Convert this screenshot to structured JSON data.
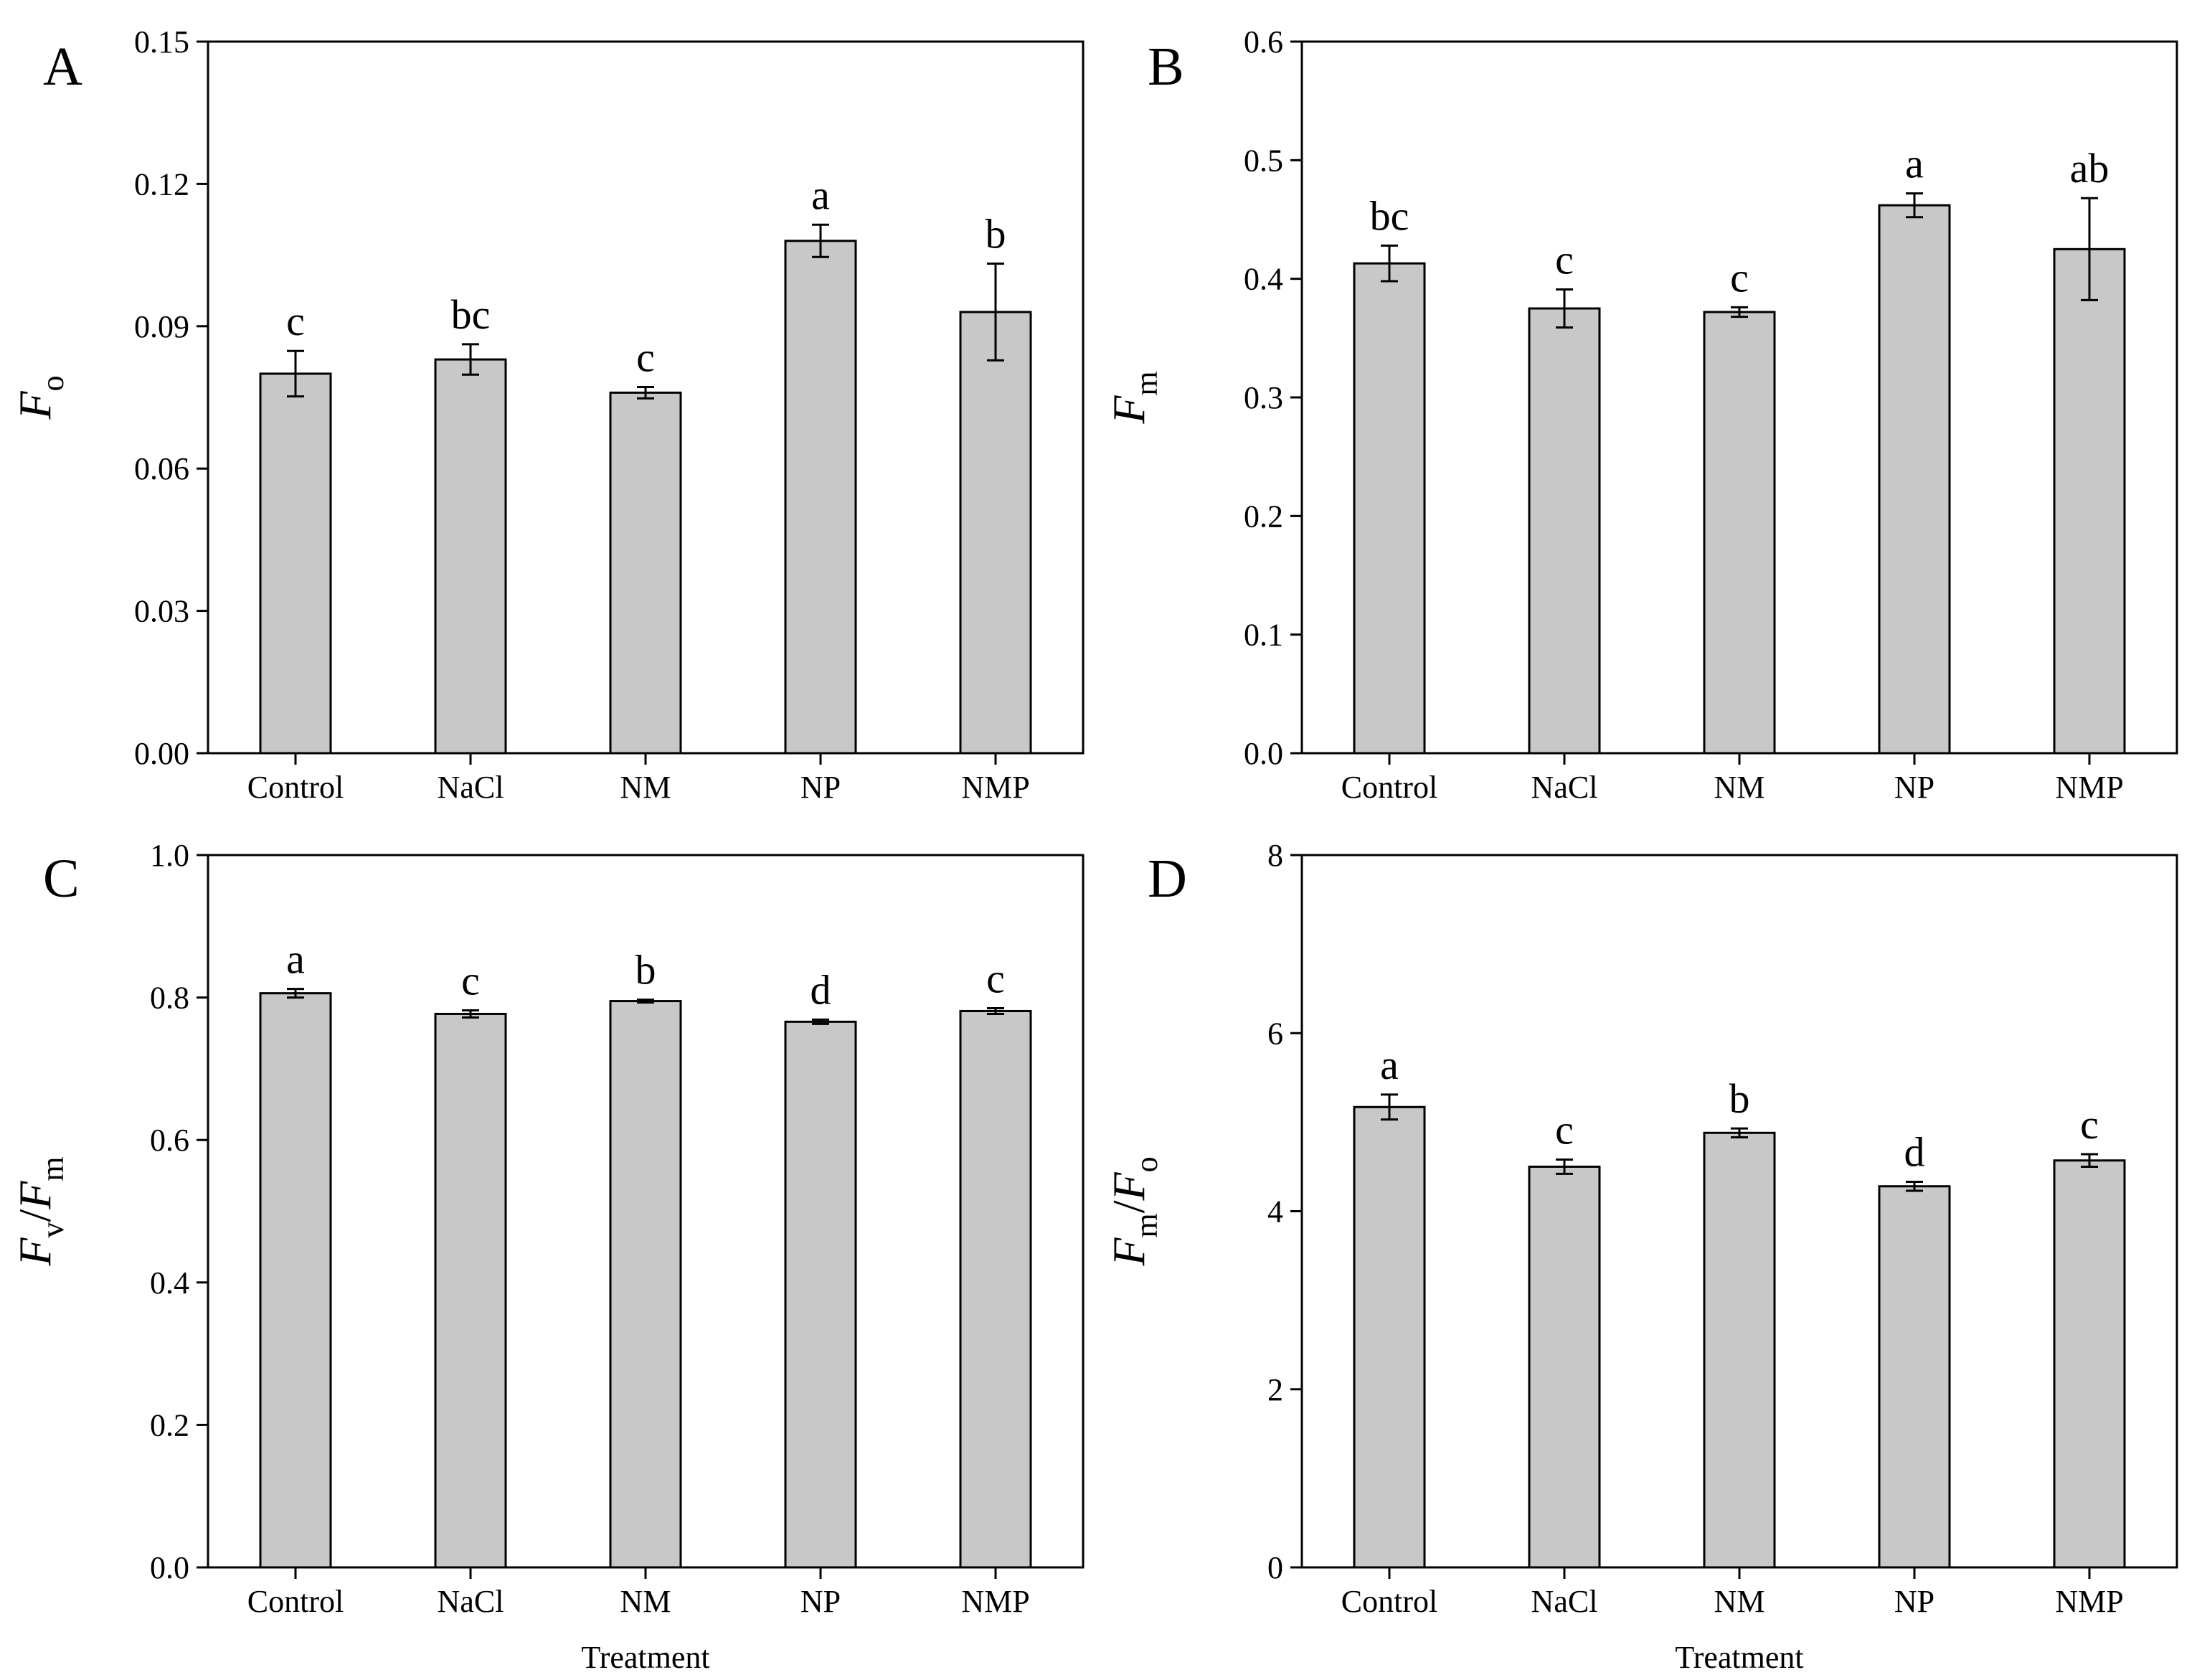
{
  "chart_data": [
    {
      "type": "bar",
      "panel": "A",
      "ylabel": {
        "parts": [
          {
            "t": "F",
            "sub": "o"
          }
        ]
      },
      "xlabel": "",
      "categories": [
        "Control",
        "NaCl",
        "NM",
        "NP",
        "NMP"
      ],
      "values": [
        0.08,
        0.083,
        0.076,
        0.108,
        0.093
      ],
      "errors": [
        0.0048,
        0.0032,
        0.0012,
        0.0034,
        0.0102
      ],
      "letters": [
        "c",
        "bc",
        "c",
        "a",
        "b"
      ],
      "ylim": [
        0,
        0.15
      ],
      "yticks": [
        "0.00",
        "0.03",
        "0.06",
        "0.09",
        "0.12",
        "0.15"
      ],
      "bar_color": "#c8c8c8"
    },
    {
      "type": "bar",
      "panel": "B",
      "ylabel": {
        "parts": [
          {
            "t": "F",
            "sub": "m"
          }
        ]
      },
      "xlabel": "",
      "categories": [
        "Control",
        "NaCl",
        "NM",
        "NP",
        "NMP"
      ],
      "values": [
        0.413,
        0.375,
        0.372,
        0.462,
        0.425
      ],
      "errors": [
        0.015,
        0.016,
        0.004,
        0.01,
        0.043
      ],
      "letters": [
        "bc",
        "c",
        "c",
        "a",
        "ab"
      ],
      "ylim": [
        0,
        0.6
      ],
      "yticks": [
        "0.0",
        "0.1",
        "0.2",
        "0.3",
        "0.4",
        "0.5",
        "0.6"
      ],
      "bar_color": "#c8c8c8"
    },
    {
      "type": "bar",
      "panel": "C",
      "ylabel": {
        "parts": [
          {
            "t": "F",
            "sub": "v"
          },
          {
            "t": "F",
            "sub": "m"
          }
        ]
      },
      "xlabel": "Treatment",
      "categories": [
        "Control",
        "NaCl",
        "NM",
        "NP",
        "NMP"
      ],
      "values": [
        0.806,
        0.777,
        0.795,
        0.766,
        0.781
      ],
      "errors": [
        0.006,
        0.005,
        0.002,
        0.003,
        0.004
      ],
      "letters": [
        "a",
        "c",
        "b",
        "d",
        "c"
      ],
      "ylim": [
        0,
        1.0
      ],
      "yticks": [
        "0.0",
        "0.2",
        "0.4",
        "0.6",
        "0.8",
        "1.0"
      ],
      "bar_color": "#c8c8c8"
    },
    {
      "type": "bar",
      "panel": "D",
      "ylabel": {
        "parts": [
          {
            "t": "F",
            "sub": "m"
          },
          {
            "t": "F",
            "sub": "o"
          }
        ]
      },
      "xlabel": "Treatment",
      "categories": [
        "Control",
        "NaCl",
        "NM",
        "NP",
        "NMP"
      ],
      "values": [
        5.17,
        4.5,
        4.88,
        4.28,
        4.57
      ],
      "errors": [
        0.14,
        0.08,
        0.05,
        0.05,
        0.07
      ],
      "letters": [
        "a",
        "c",
        "b",
        "d",
        "c"
      ],
      "ylim": [
        0,
        8
      ],
      "yticks": [
        "0",
        "2",
        "4",
        "6",
        "8"
      ],
      "bar_color": "#c8c8c8"
    }
  ]
}
